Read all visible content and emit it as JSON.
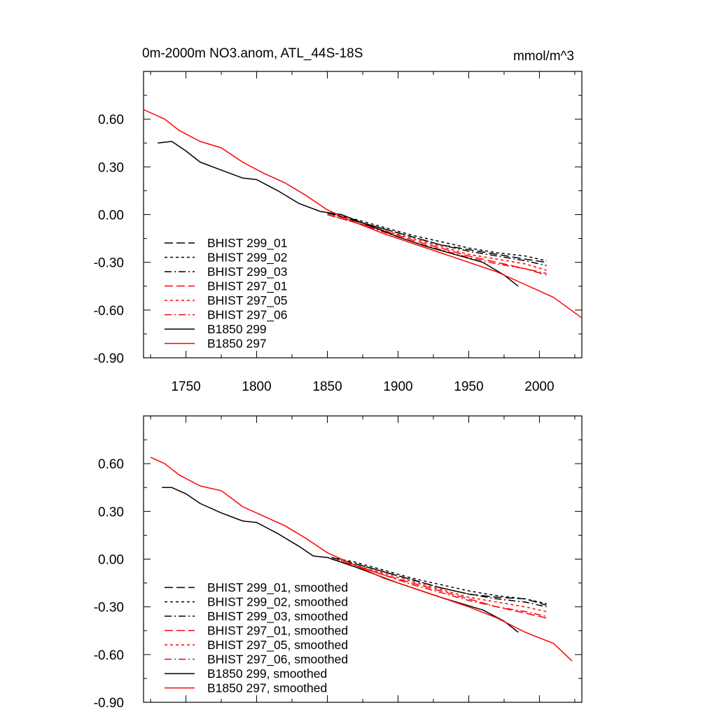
{
  "figure": {
    "title_left": "0m-2000m NO3.anom, ATL_44S-18S",
    "title_right": "mmol/m^3"
  },
  "colors": {
    "black": "#000000",
    "red": "#ff0000"
  },
  "chart_data": [
    {
      "type": "line",
      "title": "0m-2000m NO3.anom, ATL_44S-18S",
      "units": "mmol/m^3",
      "xlim": [
        1720,
        2030
      ],
      "ylim": [
        -0.9,
        0.9
      ],
      "xticks": [
        1750,
        1800,
        1850,
        1900,
        1950,
        2000
      ],
      "xtick_labels": [
        "1750",
        "1800",
        "1850",
        "1900",
        "1950",
        "2000"
      ],
      "yticks": [
        0.6,
        0.3,
        0.0,
        -0.3,
        -0.6,
        -0.9
      ],
      "ytick_labels": [
        "0.60",
        "0.30",
        "0.00",
        "-0.30",
        "-0.60",
        "-0.90"
      ],
      "grid": false,
      "legend_position": "bottom-left",
      "series": [
        {
          "name": "BHIST 299_01",
          "color": "#000000",
          "dash": "long-dash",
          "x": [
            1850,
            1870,
            1890,
            1910,
            1930,
            1950,
            1970,
            1990,
            2005
          ],
          "y": [
            0.01,
            -0.04,
            -0.09,
            -0.14,
            -0.19,
            -0.22,
            -0.25,
            -0.28,
            -0.3
          ]
        },
        {
          "name": "BHIST 299_02",
          "color": "#000000",
          "dash": "short-dash",
          "x": [
            1850,
            1870,
            1890,
            1910,
            1930,
            1950,
            1970,
            1990,
            2005
          ],
          "y": [
            0.01,
            -0.03,
            -0.08,
            -0.13,
            -0.17,
            -0.21,
            -0.24,
            -0.26,
            -0.29
          ]
        },
        {
          "name": "BHIST 299_03",
          "color": "#000000",
          "dash": "dash-dot",
          "x": [
            1850,
            1870,
            1890,
            1910,
            1930,
            1950,
            1970,
            1990,
            2005
          ],
          "y": [
            0.01,
            -0.04,
            -0.09,
            -0.14,
            -0.19,
            -0.23,
            -0.26,
            -0.29,
            -0.32
          ]
        },
        {
          "name": "BHIST 297_01",
          "color": "#ff0000",
          "dash": "long-dash",
          "x": [
            1850,
            1870,
            1890,
            1910,
            1930,
            1950,
            1970,
            1990,
            2005
          ],
          "y": [
            0.0,
            -0.05,
            -0.1,
            -0.16,
            -0.21,
            -0.26,
            -0.3,
            -0.34,
            -0.38
          ]
        },
        {
          "name": "BHIST 297_05",
          "color": "#ff0000",
          "dash": "short-dash",
          "x": [
            1850,
            1870,
            1890,
            1910,
            1930,
            1950,
            1970,
            1990,
            2005
          ],
          "y": [
            0.0,
            -0.05,
            -0.1,
            -0.15,
            -0.2,
            -0.25,
            -0.28,
            -0.31,
            -0.35
          ]
        },
        {
          "name": "BHIST 297_06",
          "color": "#ff0000",
          "dash": "dash-dot",
          "x": [
            1850,
            1870,
            1890,
            1910,
            1930,
            1950,
            1970,
            1990,
            2005
          ],
          "y": [
            0.0,
            -0.05,
            -0.11,
            -0.17,
            -0.22,
            -0.27,
            -0.31,
            -0.34,
            -0.37
          ]
        },
        {
          "name": "B1850 299",
          "color": "#000000",
          "dash": "solid",
          "x": [
            1730,
            1740,
            1750,
            1760,
            1775,
            1790,
            1800,
            1815,
            1830,
            1845,
            1860,
            1880,
            1900,
            1920,
            1940,
            1960,
            1975,
            1985
          ],
          "y": [
            0.45,
            0.46,
            0.4,
            0.33,
            0.28,
            0.23,
            0.22,
            0.15,
            0.07,
            0.02,
            0.0,
            -0.07,
            -0.14,
            -0.2,
            -0.25,
            -0.3,
            -0.38,
            -0.45
          ]
        },
        {
          "name": "B1850 297",
          "color": "#ff0000",
          "dash": "solid",
          "x": [
            1720,
            1735,
            1745,
            1760,
            1775,
            1790,
            1805,
            1820,
            1835,
            1850,
            1870,
            1890,
            1910,
            1930,
            1950,
            1970,
            1990,
            2010,
            2030
          ],
          "y": [
            0.66,
            0.6,
            0.53,
            0.46,
            0.42,
            0.33,
            0.26,
            0.2,
            0.12,
            0.03,
            -0.05,
            -0.12,
            -0.18,
            -0.24,
            -0.3,
            -0.36,
            -0.44,
            -0.52,
            -0.65
          ]
        }
      ]
    },
    {
      "type": "line",
      "xlim": [
        1720,
        2030
      ],
      "ylim": [
        -0.9,
        0.9
      ],
      "xticks": [
        1750,
        1800,
        1850,
        1900,
        1950,
        2000
      ],
      "yticks": [
        0.6,
        0.3,
        0.0,
        -0.3,
        -0.6,
        -0.9
      ],
      "ytick_labels": [
        "0.60",
        "0.30",
        "0.00",
        "-0.30",
        "-0.60",
        "-0.90"
      ],
      "grid": false,
      "legend_position": "bottom-left",
      "series": [
        {
          "name": "BHIST 299_01, smoothed",
          "color": "#000000",
          "dash": "long-dash",
          "x": [
            1853,
            1870,
            1890,
            1910,
            1930,
            1950,
            1970,
            1990,
            2005
          ],
          "y": [
            0.01,
            -0.03,
            -0.08,
            -0.13,
            -0.18,
            -0.22,
            -0.24,
            -0.25,
            -0.29
          ]
        },
        {
          "name": "BHIST 299_02, smoothed",
          "color": "#000000",
          "dash": "short-dash",
          "x": [
            1853,
            1870,
            1890,
            1910,
            1930,
            1950,
            1970,
            1990,
            2005
          ],
          "y": [
            0.01,
            -0.02,
            -0.07,
            -0.12,
            -0.16,
            -0.2,
            -0.23,
            -0.25,
            -0.28
          ]
        },
        {
          "name": "BHIST 299_03, smoothed",
          "color": "#000000",
          "dash": "dash-dot",
          "x": [
            1853,
            1870,
            1890,
            1910,
            1930,
            1950,
            1970,
            1990,
            2005
          ],
          "y": [
            0.01,
            -0.03,
            -0.08,
            -0.13,
            -0.18,
            -0.22,
            -0.25,
            -0.27,
            -0.3
          ]
        },
        {
          "name": "BHIST 297_01, smoothed",
          "color": "#ff0000",
          "dash": "long-dash",
          "x": [
            1853,
            1870,
            1890,
            1910,
            1930,
            1950,
            1970,
            1990,
            2005
          ],
          "y": [
            0.0,
            -0.04,
            -0.1,
            -0.15,
            -0.2,
            -0.25,
            -0.3,
            -0.34,
            -0.37
          ]
        },
        {
          "name": "BHIST 297_05, smoothed",
          "color": "#ff0000",
          "dash": "short-dash",
          "x": [
            1853,
            1870,
            1890,
            1910,
            1930,
            1950,
            1970,
            1990,
            2005
          ],
          "y": [
            0.0,
            -0.04,
            -0.09,
            -0.14,
            -0.19,
            -0.24,
            -0.27,
            -0.3,
            -0.33
          ]
        },
        {
          "name": "BHIST 297_06, smoothed",
          "color": "#ff0000",
          "dash": "dash-dot",
          "x": [
            1853,
            1870,
            1890,
            1910,
            1930,
            1950,
            1970,
            1990,
            2005
          ],
          "y": [
            0.0,
            -0.04,
            -0.1,
            -0.16,
            -0.21,
            -0.26,
            -0.3,
            -0.33,
            -0.36
          ]
        },
        {
          "name": "B1850 299, smoothed",
          "color": "#000000",
          "dash": "solid",
          "x": [
            1733,
            1740,
            1750,
            1760,
            1775,
            1790,
            1800,
            1815,
            1830,
            1840,
            1850,
            1870,
            1900,
            1930,
            1960,
            1975,
            1985
          ],
          "y": [
            0.45,
            0.45,
            0.41,
            0.35,
            0.29,
            0.24,
            0.23,
            0.16,
            0.08,
            0.02,
            0.01,
            -0.05,
            -0.15,
            -0.24,
            -0.32,
            -0.39,
            -0.46
          ]
        },
        {
          "name": "B1850 297, smoothed",
          "color": "#ff0000",
          "dash": "solid",
          "x": [
            1725,
            1735,
            1745,
            1760,
            1775,
            1790,
            1805,
            1820,
            1835,
            1850,
            1870,
            1890,
            1910,
            1930,
            1950,
            1970,
            1990,
            2010,
            2023
          ],
          "y": [
            0.64,
            0.6,
            0.53,
            0.46,
            0.43,
            0.33,
            0.27,
            0.21,
            0.13,
            0.04,
            -0.04,
            -0.12,
            -0.18,
            -0.24,
            -0.3,
            -0.37,
            -0.46,
            -0.53,
            -0.64
          ]
        }
      ]
    }
  ]
}
